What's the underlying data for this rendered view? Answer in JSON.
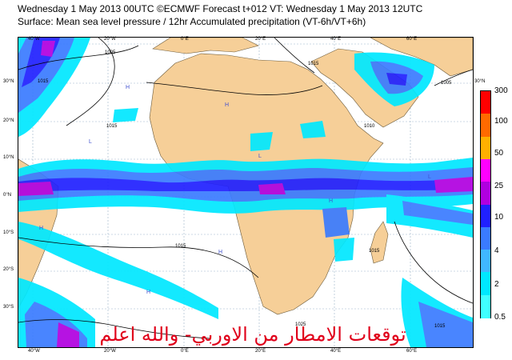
{
  "header": {
    "line1": "Wednesday 1 May 2013 00UTC ©ECMWF Forecast t+012 VT: Wednesday 1 May 2013 12UTC",
    "line2": "Surface: Mean sea level pressure / 12hr Accumulated precipitation (VT-6h/VT+6h)"
  },
  "map": {
    "lon_ticks": [
      "40°W",
      "20°W",
      "0°E",
      "20°E",
      "40°E",
      "60°E"
    ],
    "lat_ticks": [
      "30°N",
      "20°N",
      "10°N",
      "0°N",
      "10°S",
      "20°S",
      "30°S"
    ],
    "isobar_labels": [
      "1015",
      "1005",
      "1015",
      "1015",
      "1005",
      "1010",
      "1015",
      "1015",
      "1025",
      "1015"
    ],
    "pressure_centers": [
      "H",
      "H",
      "L",
      "H",
      "H",
      "H",
      "L",
      "H",
      "L"
    ],
    "colors": {
      "ocean": "#ffffff",
      "land": "#f6cf98",
      "isobar": "#000000"
    }
  },
  "legend": {
    "ticks": [
      "300",
      "100",
      "50",
      "25",
      "10",
      "4",
      "2",
      "0.5"
    ],
    "colors": [
      "#ff0000",
      "#ff6a00",
      "#ffb000",
      "#ff00ff",
      "#b000e0",
      "#2020ff",
      "#3a7bff",
      "#40b8ff",
      "#00e8ff",
      "#40ffff"
    ]
  },
  "caption": "توقعات الامطار من الاوربي- والله اعلم"
}
